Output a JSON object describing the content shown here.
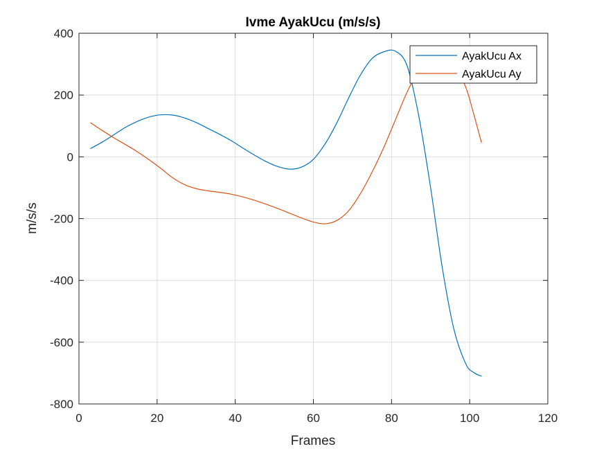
{
  "chart_data": {
    "type": "line",
    "title": "Ivme AyakUcu (m/s/s)",
    "xlabel": "Frames",
    "ylabel": "m/s/s",
    "xlim": [
      0,
      120
    ],
    "ylim": [
      -800,
      400
    ],
    "xticks": [
      0,
      20,
      40,
      60,
      80,
      100,
      120
    ],
    "yticks": [
      -800,
      -600,
      -400,
      -200,
      0,
      200,
      400
    ],
    "xtick_labels": [
      "0",
      "20",
      "40",
      "60",
      "80",
      "100",
      "120"
    ],
    "ytick_labels": [
      "-800",
      "-600",
      "-400",
      "-200",
      "0",
      "200",
      "400"
    ],
    "grid": true,
    "legend_position": "top-right",
    "series": [
      {
        "name": "AyakUcu Ax",
        "color": "#0072BD",
        "x": [
          3,
          6,
          9,
          12,
          15,
          18,
          21,
          24,
          27,
          30,
          33,
          36,
          39,
          42,
          45,
          48,
          51,
          54,
          57,
          60,
          63,
          66,
          69,
          72,
          75,
          78,
          81,
          84,
          87,
          90,
          93,
          96,
          99,
          101,
          103
        ],
        "y": [
          27,
          48,
          72,
          96,
          115,
          129,
          136,
          135,
          126,
          111,
          92,
          73,
          52,
          28,
          5,
          -16,
          -32,
          -40,
          -33,
          -8,
          42,
          110,
          190,
          264,
          318,
          340,
          342,
          294,
          130,
          -100,
          -360,
          -560,
          -670,
          -698,
          -710
        ]
      },
      {
        "name": "AyakUcu Ay",
        "color": "#D95319",
        "x": [
          3,
          6,
          9,
          12,
          15,
          18,
          21,
          24,
          27,
          30,
          33,
          36,
          39,
          42,
          45,
          48,
          51,
          54,
          57,
          60,
          63,
          66,
          69,
          72,
          75,
          78,
          81,
          84,
          87,
          90,
          93,
          96,
          99,
          101,
          103
        ],
        "y": [
          110,
          85,
          61,
          39,
          16,
          -10,
          -38,
          -68,
          -90,
          -103,
          -110,
          -115,
          -121,
          -130,
          -141,
          -154,
          -168,
          -183,
          -198,
          -211,
          -217,
          -206,
          -175,
          -120,
          -50,
          30,
          120,
          210,
          280,
          315,
          325,
          300,
          225,
          140,
          47
        ]
      }
    ]
  }
}
